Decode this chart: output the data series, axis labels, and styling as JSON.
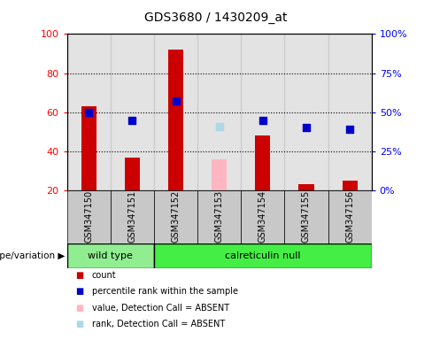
{
  "title": "GDS3680 / 1430209_at",
  "samples": [
    "GSM347150",
    "GSM347151",
    "GSM347152",
    "GSM347153",
    "GSM347154",
    "GSM347155",
    "GSM347156"
  ],
  "count_values": [
    63,
    37,
    92,
    null,
    48,
    23,
    25
  ],
  "count_absent_values": [
    null,
    null,
    null,
    36,
    null,
    null,
    null
  ],
  "percentile_values": [
    50,
    45,
    57,
    null,
    45,
    40,
    39
  ],
  "percentile_absent_values": [
    null,
    null,
    null,
    41,
    null,
    null,
    null
  ],
  "ylim": [
    20,
    100
  ],
  "y2lim": [
    0,
    100
  ],
  "yticks": [
    20,
    40,
    60,
    80,
    100
  ],
  "y2ticks": [
    0,
    25,
    50,
    75,
    100
  ],
  "bar_color": "#CC0000",
  "bar_absent_color": "#FFB6C1",
  "dot_color": "#0000CC",
  "dot_absent_color": "#ADD8E6",
  "bar_width": 0.35,
  "dot_size": 35,
  "col_bg_color": "#C8C8C8",
  "wt_color": "#90EE90",
  "calret_color": "#44EE44",
  "genotype_label": "genotype/variation",
  "legend_items": [
    {
      "label": "count",
      "color": "#CC0000"
    },
    {
      "label": "percentile rank within the sample",
      "color": "#0000CC"
    },
    {
      "label": "value, Detection Call = ABSENT",
      "color": "#FFB6C1"
    },
    {
      "label": "rank, Detection Call = ABSENT",
      "color": "#ADD8E6"
    }
  ]
}
